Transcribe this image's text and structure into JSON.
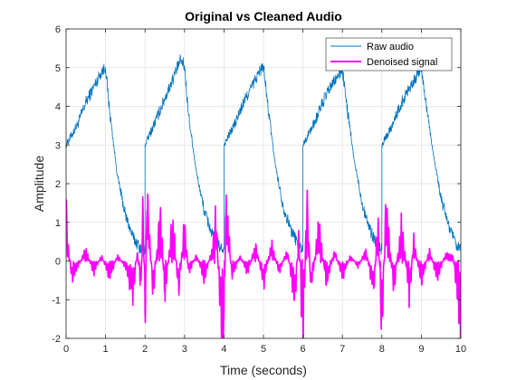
{
  "chart_data": {
    "type": "line",
    "title": "Original vs Cleaned Audio",
    "xlabel": "Time (seconds)",
    "ylabel": "Amplitude",
    "xlim": [
      0,
      10
    ],
    "ylim": [
      -2,
      6
    ],
    "xticks": [
      0,
      1,
      2,
      3,
      4,
      5,
      6,
      7,
      8,
      9,
      10
    ],
    "yticks": [
      -2,
      -1,
      0,
      1,
      2,
      3,
      4,
      5,
      6
    ],
    "grid": true,
    "legend_position": "top-right",
    "series": [
      {
        "name": "Raw audio",
        "color": "#0072BD",
        "style": "sawtooth with dense high-frequency noise; rises ~3 to ~5 over each 2 s cycle then decays to ~0.2",
        "points": [
          [
            0.0,
            3.0
          ],
          [
            0.3,
            3.55
          ],
          [
            0.5,
            4.1
          ],
          [
            0.7,
            4.5
          ],
          [
            0.9,
            4.9
          ],
          [
            1.0,
            5.0
          ],
          [
            1.1,
            3.9
          ],
          [
            1.3,
            2.2
          ],
          [
            1.5,
            1.2
          ],
          [
            1.7,
            0.6
          ],
          [
            1.9,
            0.3
          ],
          [
            2.0,
            0.25
          ],
          [
            2.0,
            3.0
          ],
          [
            2.3,
            3.7
          ],
          [
            2.5,
            4.2
          ],
          [
            2.7,
            4.7
          ],
          [
            2.9,
            5.2
          ],
          [
            3.0,
            5.05
          ],
          [
            3.1,
            3.8
          ],
          [
            3.3,
            2.3
          ],
          [
            3.5,
            1.3
          ],
          [
            3.7,
            0.7
          ],
          [
            3.9,
            0.35
          ],
          [
            4.0,
            0.3
          ],
          [
            4.0,
            3.0
          ],
          [
            4.3,
            3.6
          ],
          [
            4.5,
            4.1
          ],
          [
            4.7,
            4.5
          ],
          [
            4.9,
            4.9
          ],
          [
            5.0,
            5.05
          ],
          [
            5.1,
            4.1
          ],
          [
            5.3,
            2.5
          ],
          [
            5.5,
            1.4
          ],
          [
            5.7,
            0.8
          ],
          [
            5.9,
            0.4
          ],
          [
            6.0,
            0.3
          ],
          [
            6.0,
            3.0
          ],
          [
            6.3,
            3.6
          ],
          [
            6.5,
            4.1
          ],
          [
            6.7,
            4.5
          ],
          [
            6.9,
            4.8
          ],
          [
            7.0,
            4.95
          ],
          [
            7.1,
            4.1
          ],
          [
            7.3,
            2.6
          ],
          [
            7.5,
            1.5
          ],
          [
            7.7,
            0.8
          ],
          [
            7.9,
            0.4
          ],
          [
            8.0,
            0.3
          ],
          [
            8.0,
            3.0
          ],
          [
            8.3,
            3.6
          ],
          [
            8.5,
            4.1
          ],
          [
            8.7,
            4.5
          ],
          [
            8.9,
            4.8
          ],
          [
            9.0,
            5.0
          ],
          [
            9.1,
            4.2
          ],
          [
            9.3,
            2.8
          ],
          [
            9.5,
            1.6
          ],
          [
            9.7,
            0.9
          ],
          [
            9.9,
            0.35
          ],
          [
            10.0,
            0.3
          ]
        ]
      },
      {
        "name": "Denoised signal",
        "color": "#FF00FF",
        "style": "oscillating around 0 with bursts between about -1.6 and 1.4",
        "points": [
          [
            0.0,
            1.3
          ],
          [
            0.05,
            0.3
          ],
          [
            0.15,
            -0.3
          ],
          [
            0.3,
            -0.1
          ],
          [
            0.5,
            0.2
          ],
          [
            0.7,
            -0.2
          ],
          [
            0.9,
            0.1
          ],
          [
            1.1,
            -0.3
          ],
          [
            1.3,
            0.1
          ],
          [
            1.5,
            -0.1
          ],
          [
            1.7,
            -0.6
          ],
          [
            1.8,
            0.2
          ],
          [
            1.9,
            -0.5
          ],
          [
            1.95,
            1.3
          ],
          [
            2.0,
            -1.4
          ],
          [
            2.05,
            1.3
          ],
          [
            2.2,
            -0.6
          ],
          [
            2.4,
            0.9
          ],
          [
            2.5,
            -0.7
          ],
          [
            2.7,
            0.8
          ],
          [
            2.85,
            -0.6
          ],
          [
            3.0,
            0.7
          ],
          [
            3.1,
            -0.2
          ],
          [
            3.3,
            0.1
          ],
          [
            3.5,
            -0.3
          ],
          [
            3.7,
            0.2
          ],
          [
            3.8,
            0.8
          ],
          [
            3.9,
            -0.9
          ],
          [
            4.0,
            -1.35
          ],
          [
            4.05,
            1.2
          ],
          [
            4.2,
            -0.3
          ],
          [
            4.4,
            0.1
          ],
          [
            4.6,
            -0.2
          ],
          [
            4.8,
            0.3
          ],
          [
            5.0,
            -0.4
          ],
          [
            5.2,
            0.3
          ],
          [
            5.4,
            -0.2
          ],
          [
            5.6,
            0.2
          ],
          [
            5.8,
            -0.7
          ],
          [
            5.9,
            0.6
          ],
          [
            6.0,
            -1.6
          ],
          [
            6.1,
            1.2
          ],
          [
            6.2,
            -0.5
          ],
          [
            6.4,
            0.6
          ],
          [
            6.6,
            -0.4
          ],
          [
            6.8,
            0.2
          ],
          [
            7.0,
            -0.3
          ],
          [
            7.2,
            0.1
          ],
          [
            7.4,
            -0.1
          ],
          [
            7.6,
            0.2
          ],
          [
            7.8,
            -0.6
          ],
          [
            7.9,
            0.8
          ],
          [
            8.0,
            -1.35
          ],
          [
            8.1,
            1.0
          ],
          [
            8.3,
            -0.5
          ],
          [
            8.5,
            0.7
          ],
          [
            8.7,
            -0.7
          ],
          [
            8.8,
            0.4
          ],
          [
            9.0,
            -0.4
          ],
          [
            9.2,
            0.2
          ],
          [
            9.4,
            -0.3
          ],
          [
            9.6,
            0.1
          ],
          [
            9.8,
            0.1
          ],
          [
            9.9,
            -0.5
          ],
          [
            10.0,
            -1.3
          ]
        ]
      }
    ]
  }
}
